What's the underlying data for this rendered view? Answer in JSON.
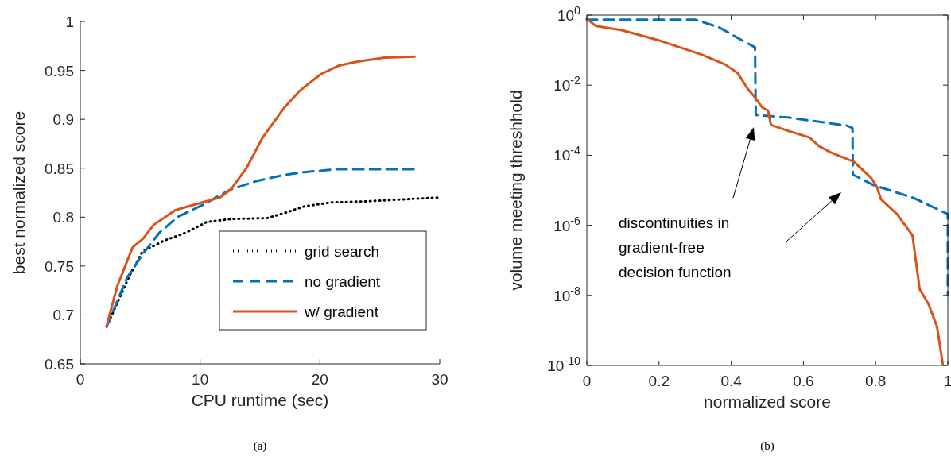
{
  "chart_data": [
    {
      "type": "line",
      "xlabel": "CPU runtime (sec)",
      "ylabel": "best normalized score",
      "xlim": [
        0,
        30
      ],
      "ylim": [
        0.65,
        1
      ],
      "xticks": [
        0,
        10,
        20,
        30
      ],
      "yticks": [
        0.65,
        0.7,
        0.75,
        0.8,
        0.85,
        0.9,
        0.95,
        1
      ],
      "legend": "bottom right",
      "annotations": [
        "(a)"
      ],
      "series": [
        {
          "name": "grid search",
          "color": "#000000",
          "line_style": "dotted",
          "x": [
            2.2,
            4.1,
            5.2,
            7.0,
            8.8,
            10.55,
            12.5,
            15.6,
            17,
            18.7,
            20.9,
            23.6,
            29.9
          ],
          "values": [
            0.688,
            0.74,
            0.765,
            0.776,
            0.784,
            0.795,
            0.798,
            0.799,
            0.804,
            0.811,
            0.815,
            0.816,
            0.82
          ]
        },
        {
          "name": "no gradient",
          "color": "#0072bd",
          "line_style": "dashed",
          "x": [
            2.2,
            3.9,
            5.2,
            6.6,
            8.1,
            10.3,
            12.5,
            14.75,
            17,
            18.7,
            21.4,
            27.9
          ],
          "values": [
            0.688,
            0.738,
            0.762,
            0.784,
            0.8,
            0.813,
            0.828,
            0.837,
            0.843,
            0.846,
            0.849,
            0.849
          ]
        },
        {
          "name": "w/ gradient",
          "color": "#d95319",
          "line_style": "solid",
          "x": [
            2.2,
            3.1,
            4.36,
            5.24,
            6.12,
            7.9,
            9.0,
            11.66,
            12.54,
            13.87,
            15.2,
            16.97,
            18.3,
            20.06,
            21.6,
            23.16,
            25.4,
            27.9
          ],
          "values": [
            0.689,
            0.73,
            0.769,
            0.778,
            0.792,
            0.807,
            0.811,
            0.82,
            0.828,
            0.85,
            0.881,
            0.911,
            0.929,
            0.946,
            0.955,
            0.959,
            0.963,
            0.964
          ]
        }
      ]
    },
    {
      "type": "line",
      "xlabel": "normalized score",
      "ylabel": "volume meeting threshhold",
      "xlim": [
        0,
        1
      ],
      "ylim": [
        1e-10,
        1
      ],
      "log": "y",
      "xticks": [
        0,
        0.2,
        0.4,
        0.6,
        0.8,
        1
      ],
      "yticks": [
        {
          "value": 1e-10,
          "label": "10$^{-10}$"
        },
        {
          "value": 1e-08,
          "label": "10$^{-8}$"
        },
        {
          "value": 1e-06,
          "label": "10$^{-6}$"
        },
        {
          "value": 0.0001,
          "label": "10$^{-4}$"
        },
        {
          "value": 0.01,
          "label": "10$^{-2}$"
        },
        {
          "value": 1,
          "label": "10$^{0}$"
        }
      ],
      "annotations": [
        "discontinuities in\ngradient-free\ndecision function",
        "(b)"
      ],
      "series": [
        {
          "color": "#0072bd",
          "line_style": "dashed",
          "x": [
            0,
            0.3,
            0.366,
            0.43,
            0.466,
            0.468,
            0.557,
            0.72,
            0.736,
            0.737,
            0.795,
            0.906,
            1.0,
            1.0
          ],
          "values": [
            0.74,
            0.74,
            0.45,
            0.19,
            0.12,
            0.0014,
            0.0012,
            0.0007,
            0.0006,
            2.8e-05,
            1.4e-05,
            6e-06,
            2.1e-06,
            1e-08
          ]
        },
        {
          "color": "#d95319",
          "line_style": "solid",
          "x": [
            0,
            0.025,
            0.097,
            0.2,
            0.319,
            0.383,
            0.418,
            0.446,
            0.466,
            0.486,
            0.502,
            0.51,
            0.557,
            0.617,
            0.644,
            0.676,
            0.74,
            0.787,
            0.803,
            0.815,
            0.859,
            0.902,
            0.922,
            0.946,
            0.97,
            0.986
          ],
          "values": [
            0.78,
            0.49,
            0.37,
            0.19,
            0.074,
            0.039,
            0.022,
            0.0078,
            0.0045,
            0.0023,
            0.0019,
            0.00074,
            0.0005,
            0.00032,
            0.00018,
            0.00012,
            6.5e-05,
            2.3e-05,
            1.3e-05,
            5.5e-06,
            2.1e-06,
            5.2e-07,
            1.5e-08,
            5.8e-09,
            1.3e-09,
            1.1e-10
          ]
        }
      ]
    }
  ]
}
